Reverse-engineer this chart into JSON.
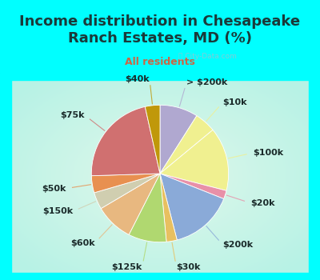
{
  "title": "Income distribution in Chesapeake\nRanch Estates, MD (%)",
  "subtitle": "All residents",
  "title_color": "#1a3a3a",
  "subtitle_color": "#cc6644",
  "background_color": "#00ffff",
  "watermark": "ⓘ City-Data.com",
  "labels": [
    "> $200k",
    "$10k",
    "$100k",
    "$20k",
    "$200k",
    "$30k",
    "$125k",
    "$60k",
    "$150k",
    "$50k",
    "$75k",
    "$40k"
  ],
  "slice_values": [
    9,
    5,
    15,
    2,
    15,
    2.5,
    9,
    9,
    4,
    4,
    22,
    3.5
  ],
  "wedge_colors": [
    "#b0a8d0",
    "#f0f090",
    "#f0f090",
    "#e890a8",
    "#8aaad8",
    "#e8c060",
    "#b0d870",
    "#e8b880",
    "#d0ceb0",
    "#e89050",
    "#d07070",
    "#c0980a"
  ],
  "label_fontsize": 8,
  "title_fontsize": 13,
  "subtitle_fontsize": 9
}
